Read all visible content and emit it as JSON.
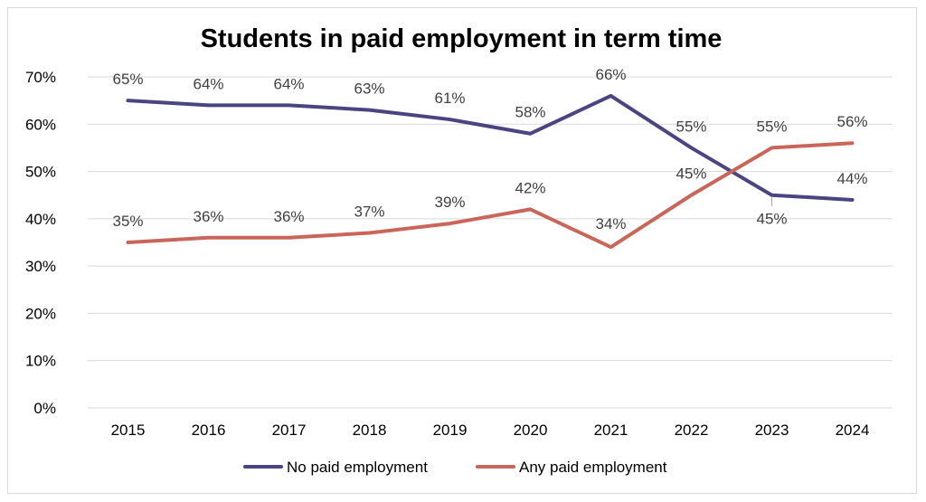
{
  "chart_data": {
    "type": "line",
    "title": "Students in paid employment in term time",
    "xlabel": "",
    "ylabel": "",
    "categories": [
      "2015",
      "2016",
      "2017",
      "2018",
      "2019",
      "2020",
      "2021",
      "2022",
      "2023",
      "2024"
    ],
    "y_ticks": [
      "0%",
      "10%",
      "20%",
      "30%",
      "40%",
      "50%",
      "60%",
      "70%"
    ],
    "ylim": [
      0,
      70
    ],
    "y_unit": "%",
    "grid": true,
    "legend_position": "bottom",
    "series": [
      {
        "name": "No paid employment",
        "color": "#4b4483",
        "values": [
          65,
          64,
          64,
          63,
          61,
          58,
          66,
          55,
          45,
          44
        ],
        "labels": [
          "65%",
          "64%",
          "64%",
          "63%",
          "61%",
          "58%",
          "66%",
          "55%",
          "45%",
          "44%"
        ]
      },
      {
        "name": "Any paid employment",
        "color": "#c8665a",
        "values": [
          35,
          36,
          36,
          37,
          39,
          42,
          34,
          45,
          55,
          56
        ],
        "labels": [
          "35%",
          "36%",
          "36%",
          "37%",
          "39%",
          "42%",
          "34%",
          "45%",
          "55%",
          "56%"
        ]
      }
    ]
  }
}
